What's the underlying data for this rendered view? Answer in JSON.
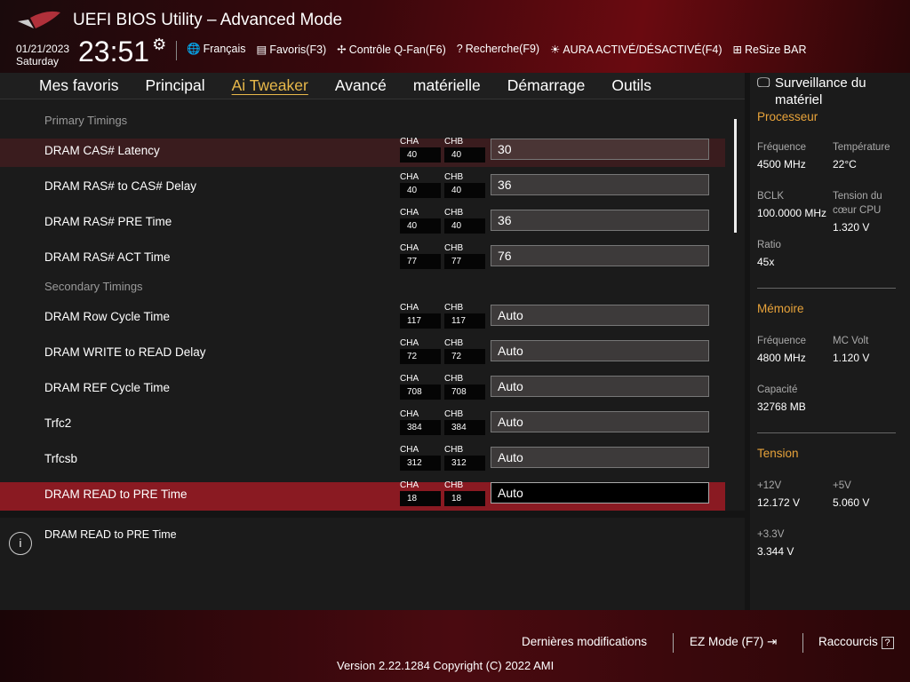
{
  "header": {
    "title": "UEFI BIOS Utility – Advanced Mode",
    "date": "01/21/2023",
    "day": "Saturday",
    "time": "23:51",
    "tools": [
      {
        "icon": "globe-icon",
        "glyph": "🌐",
        "label": "Français"
      },
      {
        "icon": "favorites-icon",
        "glyph": "▤",
        "label": "Favoris(F3)"
      },
      {
        "icon": "fan-icon",
        "glyph": "✢",
        "label": "Contrôle Q-Fan(F6)"
      },
      {
        "icon": "search-icon",
        "glyph": "?",
        "label": "Recherche(F9)"
      },
      {
        "icon": "aura-icon",
        "glyph": "☀",
        "label": "AURA ACTIVÉ/DÉSACTIVÉ(F4)"
      },
      {
        "icon": "resize-bar-icon",
        "glyph": "⊞",
        "label": "ReSize BAR"
      }
    ]
  },
  "nav": {
    "tabs": [
      "Mes favoris",
      "Principal",
      "Ai Tweaker",
      "Avancé",
      "matérielle",
      "Démarrage",
      "Outils"
    ],
    "active": "Ai Tweaker"
  },
  "sections": {
    "primary": "Primary Timings",
    "secondary": "Secondary Timings"
  },
  "ch_labels": {
    "a": "CHA",
    "b": "CHB"
  },
  "rows": [
    {
      "label": "DRAM CAS# Latency",
      "cha": "40",
      "chb": "40",
      "value": "30"
    },
    {
      "label": "DRAM RAS# to CAS# Delay",
      "cha": "40",
      "chb": "40",
      "value": "36"
    },
    {
      "label": "DRAM RAS# PRE Time",
      "cha": "40",
      "chb": "40",
      "value": "36"
    },
    {
      "label": "DRAM RAS# ACT Time",
      "cha": "77",
      "chb": "77",
      "value": "76"
    },
    {
      "label": "DRAM Row Cycle Time",
      "cha": "117",
      "chb": "117",
      "value": "Auto"
    },
    {
      "label": "DRAM WRITE to READ Delay",
      "cha": "72",
      "chb": "72",
      "value": "Auto"
    },
    {
      "label": "DRAM REF Cycle Time",
      "cha": "708",
      "chb": "708",
      "value": "Auto"
    },
    {
      "label": "Trfc2",
      "cha": "384",
      "chb": "384",
      "value": "Auto"
    },
    {
      "label": "Trfcsb",
      "cha": "312",
      "chb": "312",
      "value": "Auto"
    },
    {
      "label": "DRAM READ to PRE Time",
      "cha": "18",
      "chb": "18",
      "value": "Auto"
    }
  ],
  "help": {
    "text": "DRAM READ to PRE Time"
  },
  "monitor": {
    "title": "Surveillance du matériel",
    "cpu": {
      "heading": "Processeur",
      "freq_label": "Fréquence",
      "freq": "4500 MHz",
      "temp_label": "Température",
      "temp": "22°C",
      "bclk_label": "BCLK",
      "bclk": "100.0000 MHz",
      "vcore_label": "Tension du cœur CPU",
      "vcore": "1.320 V",
      "ratio_label": "Ratio",
      "ratio": "45x"
    },
    "mem": {
      "heading": "Mémoire",
      "freq_label": "Fréquence",
      "freq": "4800 MHz",
      "volt_label": "MC Volt",
      "volt": "1.120 V",
      "cap_label": "Capacité",
      "cap": "32768 MB"
    },
    "volt": {
      "heading": "Tension",
      "v12_label": "+12V",
      "v12": "12.172 V",
      "v5_label": "+5V",
      "v5": "5.060 V",
      "v33_label": "+3.3V",
      "v33": "3.344 V"
    }
  },
  "footer": {
    "last": "Dernières modifications",
    "ez": "EZ Mode (F7)",
    "ez_icon": "⇥",
    "shortcuts": "Raccourcis",
    "shortcuts_icon": "?",
    "version": "Version 2.22.1284 Copyright (C) 2022 AMI"
  },
  "colors": {
    "accent": "#e8b84a",
    "selected_row": "#8a1a22",
    "section_heading": "#e8a33a"
  }
}
